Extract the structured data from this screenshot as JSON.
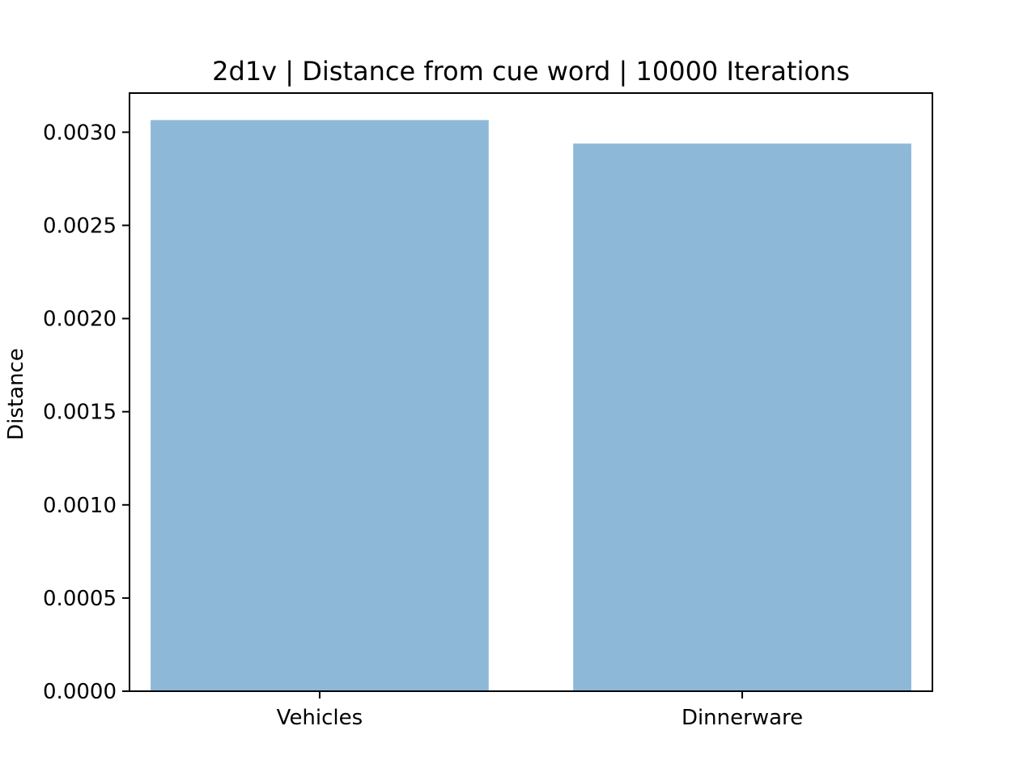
{
  "chart_data": {
    "type": "bar",
    "title": "2d1v | Distance from cue word | 10000 Iterations",
    "xlabel": "",
    "ylabel": "Distance",
    "categories": [
      "Vehicles",
      "Dinnerware"
    ],
    "values": [
      0.003065,
      0.002939
    ],
    "ylim": [
      0,
      0.00321
    ],
    "yticks": [
      0.0,
      0.0005,
      0.001,
      0.0015,
      0.002,
      0.0025,
      0.003
    ],
    "ytick_labels": [
      "0.0000",
      "0.0005",
      "0.0010",
      "0.0015",
      "0.0020",
      "0.0025",
      "0.0030"
    ],
    "grid": false,
    "legend": "none",
    "bar_color": "#8db8d8"
  }
}
